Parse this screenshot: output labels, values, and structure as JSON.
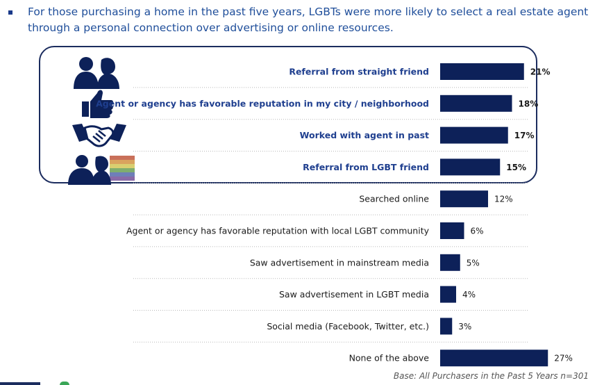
{
  "header": {
    "headline": "For those purchasing a home in the past five years, LGBTs were more likely to select a real estate agent through a personal connection over advertising or online resources."
  },
  "icons": [
    "two-people-icon",
    "thumbs-up-icon",
    "handshake-icon",
    "two-people-rainbow-flag-icon"
  ],
  "colors": {
    "bar": "#0d2159",
    "highlight_label": "#1f3f8f",
    "box_border": "#1b2c5e"
  },
  "chart_data": {
    "type": "bar",
    "orientation": "horizontal",
    "categories": [
      "Referral from straight friend",
      "Agent or agency has favorable reputation in my city / neighborhood",
      "Worked with agent in past",
      "Referral from LGBT friend",
      "Searched online",
      "Agent or agency has favorable reputation with local LGBT community",
      "Saw advertisement in mainstream media",
      "Saw advertisement in LGBT media",
      "Social media (Facebook, Twitter, etc.)",
      "None of the above"
    ],
    "values": [
      21,
      18,
      17,
      15,
      12,
      6,
      5,
      4,
      3,
      27
    ],
    "value_labels": [
      "21%",
      "18%",
      "17%",
      "15%",
      "12%",
      "6%",
      "5%",
      "4%",
      "3%",
      "27%"
    ],
    "highlighted": [
      true,
      true,
      true,
      true,
      false,
      false,
      false,
      false,
      false,
      false
    ],
    "title": "",
    "xlabel": "",
    "ylabel": "",
    "grid": "dotted row separators",
    "base_note": "Base: All Purchasers in the Past 5 Years n=301"
  }
}
